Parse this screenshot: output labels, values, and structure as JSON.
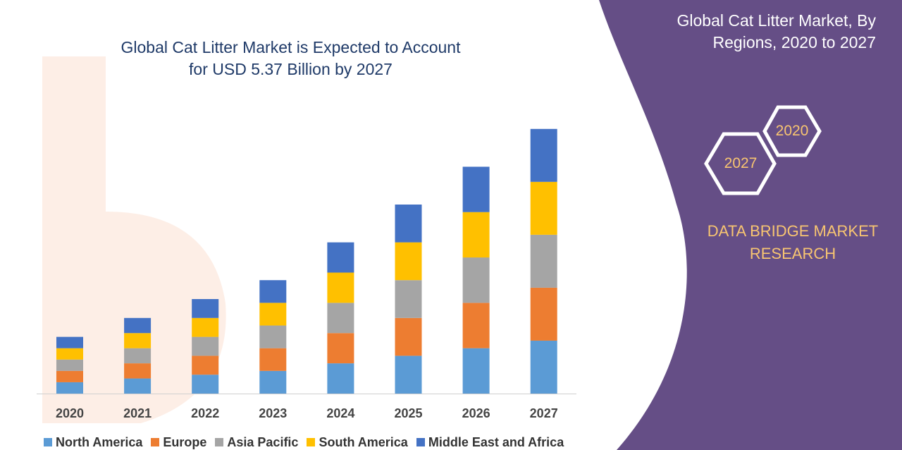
{
  "title": "Global Cat Litter Market is Expected to Account for USD 5.37 Billion by 2027",
  "title_lines": [
    "Global Cat Litter Market is Expected to Account",
    "for USD 5.37 Billion by 2027"
  ],
  "side_panel": {
    "title_lines": [
      "Global Cat Litter Market, By",
      "Regions, 2020 to 2027"
    ],
    "hex_labels": [
      "2020",
      "2027"
    ],
    "brand_lines": [
      "DATA BRIDGE MARKET",
      "RESEARCH"
    ]
  },
  "colors": {
    "panel": "#654e86",
    "hex_stroke": "#ffffff",
    "accent_text": "#f8c571",
    "title_text": "#1f3a68"
  },
  "chart_data": {
    "type": "bar",
    "stacked": true,
    "categories": [
      "2020",
      "2021",
      "2022",
      "2023",
      "2024",
      "2025",
      "2026",
      "2027"
    ],
    "series": [
      {
        "name": "North America",
        "color": "#5b9bd5",
        "values": [
          0.6,
          0.8,
          1.0,
          1.2,
          1.6,
          2.0,
          2.4,
          2.8
        ]
      },
      {
        "name": "Europe",
        "color": "#ed7d31",
        "values": [
          0.6,
          0.8,
          1.0,
          1.2,
          1.6,
          2.0,
          2.4,
          2.8
        ]
      },
      {
        "name": "Asia Pacific",
        "color": "#a5a5a5",
        "values": [
          0.6,
          0.8,
          1.0,
          1.2,
          1.6,
          2.0,
          2.4,
          2.8
        ]
      },
      {
        "name": "South America",
        "color": "#ffc000",
        "values": [
          0.6,
          0.8,
          1.0,
          1.2,
          1.6,
          2.0,
          2.4,
          2.8
        ]
      },
      {
        "name": "Middle East and Africa",
        "color": "#4472c4",
        "values": [
          0.6,
          0.8,
          1.0,
          1.2,
          1.6,
          2.0,
          2.4,
          2.8
        ]
      }
    ],
    "legend_position": "bottom",
    "grid": false
  }
}
